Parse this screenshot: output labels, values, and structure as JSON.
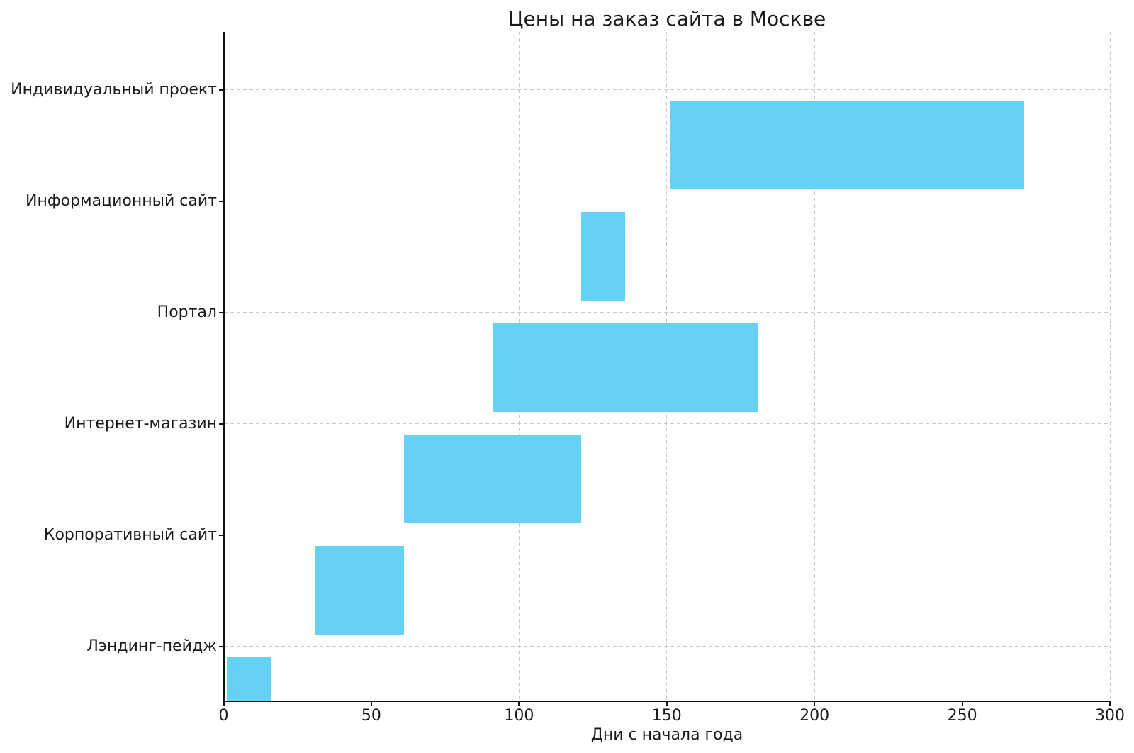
{
  "chart_data": {
    "type": "bar",
    "variant": "gantt-horizontal-broken-barh",
    "title": "Цены на заказ сайта в Москве",
    "xlabel": "Дни с начала года",
    "ylabel": "",
    "xlim": [
      0,
      300
    ],
    "xticks": [
      0,
      50,
      100,
      150,
      200,
      250,
      300
    ],
    "grid": "dashed gridlines on both axes",
    "legend": "none",
    "bar_color": "#66d1f5",
    "grid_color": "#c8c8c8",
    "spine_color": "#111111",
    "text_color": "#1a1a1a",
    "categories": [
      "Индивидуальный проект",
      "Информационный сайт",
      "Портал",
      "Интернет-магазин",
      "Корпоративный сайт",
      "Лэндинг-пейдж"
    ],
    "series": [
      {
        "name": "Индивидуальный проект",
        "start": 151,
        "end": 271,
        "duration": 120
      },
      {
        "name": "Информационный сайт",
        "start": 121,
        "end": 136,
        "duration": 15
      },
      {
        "name": "Портал",
        "start": 91,
        "end": 181,
        "duration": 90
      },
      {
        "name": "Интернет-магазин",
        "start": 61,
        "end": 121,
        "duration": 60
      },
      {
        "name": "Корпоративный сайт",
        "start": 31,
        "end": 61,
        "duration": 30
      },
      {
        "name": "Лэндинг-пейдж",
        "start": 1,
        "end": 16,
        "duration": 15
      }
    ]
  }
}
